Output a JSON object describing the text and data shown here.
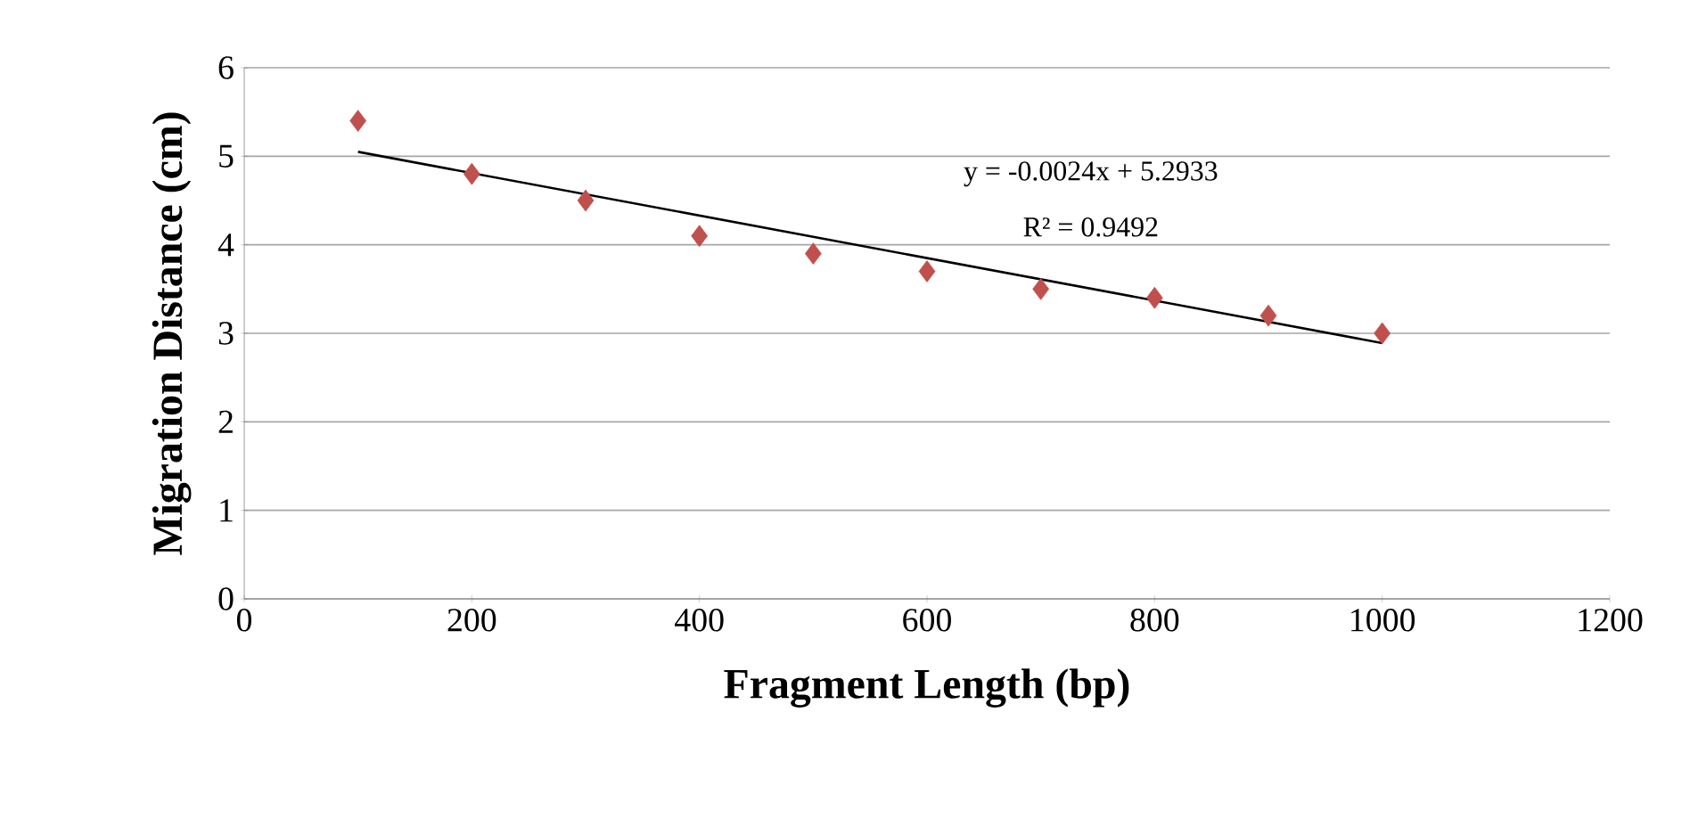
{
  "chart_data": {
    "type": "scatter",
    "xlabel": "Fragment Length (bp)",
    "ylabel": "Migration Distance (cm)",
    "x": [
      100,
      200,
      300,
      400,
      500,
      600,
      700,
      800,
      900,
      1000
    ],
    "series": [
      {
        "color": "#c0504d",
        "marker": "diamond",
        "values": [
          5.4,
          4.8,
          4.5,
          4.1,
          3.9,
          3.7,
          3.5,
          3.4,
          3.2,
          3.0
        ]
      },
      {
        "type": "line",
        "color": "#000000",
        "marker": "none",
        "x": [
          100,
          1000
        ],
        "values": [
          5.05,
          2.89
        ]
      }
    ],
    "annotations": [
      "y = -0.0024x + 5.2933",
      "R² = 0.9492"
    ],
    "xlim": [
      0,
      1200
    ],
    "xticks": [
      0,
      200,
      400,
      600,
      800,
      1000,
      1200
    ],
    "ylim": [
      0,
      6
    ],
    "yticks": [
      0,
      1,
      2,
      3,
      4,
      5,
      6
    ],
    "grid": "y"
  }
}
